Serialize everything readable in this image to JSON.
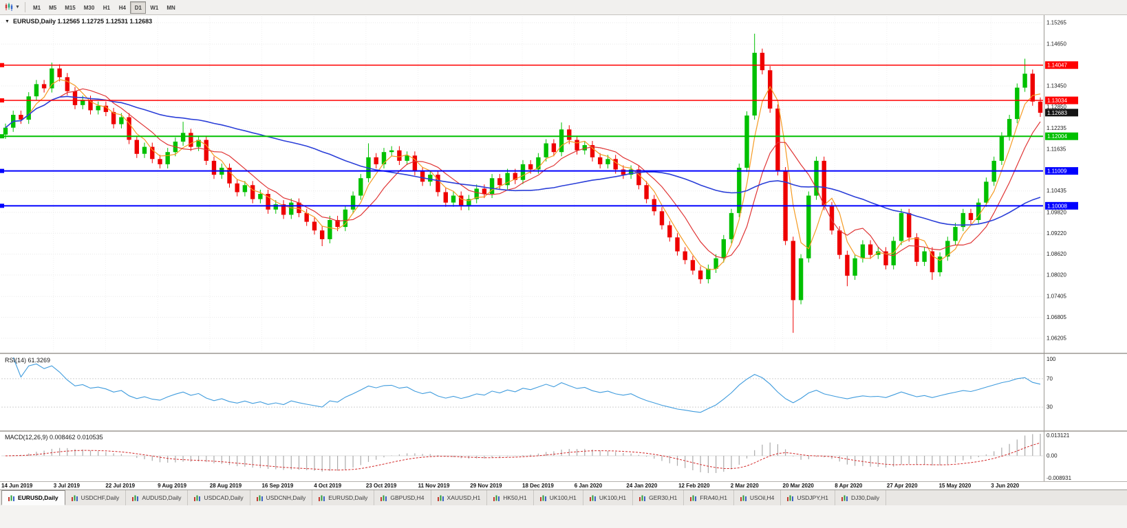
{
  "toolbar": {
    "timeframes": [
      {
        "label": "M1",
        "active": false
      },
      {
        "label": "M5",
        "active": false
      },
      {
        "label": "M15",
        "active": false
      },
      {
        "label": "M30",
        "active": false
      },
      {
        "label": "H1",
        "active": false
      },
      {
        "label": "H4",
        "active": false
      },
      {
        "label": "D1",
        "active": true
      },
      {
        "label": "W1",
        "active": false
      },
      {
        "label": "MN",
        "active": false
      }
    ]
  },
  "header": {
    "title_line": "EURUSD,Daily 1.12565 1.12725 1.12531 1.12683"
  },
  "panels": {
    "rsi_label": "RSI(14) 61.3269",
    "macd_label": "MACD(12,26,9) 0.008462 0.010535"
  },
  "tabs": [
    {
      "label": "EURUSD,Daily",
      "active": true
    },
    {
      "label": "USDCHF,Daily",
      "active": false
    },
    {
      "label": "AUDUSD,Daily",
      "active": false
    },
    {
      "label": "USDCAD,Daily",
      "active": false
    },
    {
      "label": "USDCNH,Daily",
      "active": false
    },
    {
      "label": "EURUSD,Daily",
      "active": false
    },
    {
      "label": "GBPUSD,H4",
      "active": false
    },
    {
      "label": "XAUUSD,H1",
      "active": false
    },
    {
      "label": "HK50,H1",
      "active": false
    },
    {
      "label": "UK100,H1",
      "active": false
    },
    {
      "label": "UK100,H1",
      "active": false
    },
    {
      "label": "GER30,H1",
      "active": false
    },
    {
      "label": "FRA40,H1",
      "active": false
    },
    {
      "label": "USOil,H4",
      "active": false
    },
    {
      "label": "USDJPY,H1",
      "active": false
    },
    {
      "label": "DJ30,Daily",
      "active": false
    }
  ],
  "chart_data": {
    "type": "candlestick",
    "title": "EURUSD,Daily",
    "last_bar": {
      "open": "1.12565",
      "high": "1.12725",
      "low": "1.12531",
      "close": "1.12683"
    },
    "grid": true,
    "price_axis": {
      "min": 1.06205,
      "max": 1.15265,
      "ticks": [
        "1.15265",
        "1.14650",
        "1.13450",
        "1.12850",
        "1.12235",
        "1.11635",
        "1.10435",
        "1.09820",
        "1.09220",
        "1.08620",
        "1.08020",
        "1.07405",
        "1.06805",
        "1.06205"
      ]
    },
    "x_labels": [
      "14 Jun 2019",
      "3 Jul 2019",
      "22 Jul 2019",
      "9 Aug 2019",
      "28 Aug 2019",
      "16 Sep 2019",
      "4 Oct 2019",
      "23 Oct 2019",
      "11 Nov 2019",
      "29 Nov 2019",
      "18 Dec 2019",
      "6 Jan 2020",
      "24 Jan 2020",
      "12 Feb 2020",
      "2 Mar 2020",
      "20 Mar 2020",
      "8 Apr 2020",
      "27 Apr 2020",
      "15 May 2020",
      "3 Jun 2020"
    ],
    "up_color": "#00C000",
    "down_color": "#EE0000",
    "first_open": 1.1205,
    "wick_pad": 0.0012,
    "closes": [
      1.1225,
      1.1262,
      1.1248,
      1.1315,
      1.135,
      1.1338,
      1.1395,
      1.137,
      1.133,
      1.129,
      1.1305,
      1.1275,
      1.1288,
      1.127,
      1.1235,
      1.1255,
      1.119,
      1.115,
      1.117,
      1.1135,
      1.112,
      1.1155,
      1.1185,
      1.121,
      1.117,
      1.119,
      1.113,
      1.109,
      1.111,
      1.1065,
      1.104,
      1.106,
      1.102,
      1.1035,
      1.099,
      1.1005,
      1.0975,
      1.101,
      1.098,
      1.0955,
      1.093,
      1.0905,
      1.096,
      1.094,
      1.099,
      1.103,
      1.108,
      1.114,
      1.112,
      1.1155,
      1.116,
      1.113,
      1.1145,
      1.11,
      1.107,
      1.109,
      1.104,
      1.101,
      1.103,
      1.1,
      1.102,
      1.105,
      1.1035,
      1.108,
      1.106,
      1.1095,
      1.1075,
      1.112,
      1.1105,
      1.114,
      1.118,
      1.1155,
      1.122,
      1.119,
      1.116,
      1.1175,
      1.114,
      1.112,
      1.1135,
      1.1105,
      1.109,
      1.1105,
      1.106,
      1.102,
      1.0985,
      1.0945,
      1.091,
      1.087,
      1.0845,
      1.0815,
      1.079,
      1.082,
      1.085,
      1.0905,
      1.098,
      1.111,
      1.126,
      1.144,
      1.139,
      1.128,
      1.11,
      1.09,
      1.073,
      1.085,
      1.103,
      1.113,
      1.1,
      1.093,
      1.086,
      1.08,
      1.085,
      1.089,
      1.086,
      1.087,
      1.083,
      1.09,
      1.098,
      1.091,
      1.084,
      1.087,
      1.081,
      1.0855,
      1.09,
      1.094,
      1.098,
      1.096,
      1.101,
      1.107,
      1.113,
      1.12,
      1.125,
      1.134,
      1.138,
      1.13,
      1.1268
    ],
    "wick_highs": {
      "6": 1.1412,
      "23": 1.1242,
      "47": 1.118,
      "72": 1.124,
      "97": 1.1495,
      "132": 1.1423
    },
    "wick_lows": {
      "41": 1.0885,
      "90": 1.0777,
      "102": 1.0636,
      "109": 1.077,
      "120": 1.0788
    },
    "moving_averages": [
      {
        "period": 4,
        "color": "#F59B22",
        "width": 1.2
      },
      {
        "period": 8,
        "color": "#E03535",
        "width": 1.2
      },
      {
        "period": 40,
        "color": "#2A3ED8",
        "width": 1.6
      }
    ],
    "hlines": [
      {
        "price": 1.14047,
        "color": "#FF0000",
        "width": 1.5,
        "tag": "1.14047"
      },
      {
        "price": 1.13034,
        "color": "#FF0000",
        "width": 1.5,
        "tag": "1.13034"
      },
      {
        "price": 1.12004,
        "color": "#00C000",
        "width": 2,
        "tag": "1.12004"
      },
      {
        "price": 1.11009,
        "color": "#0000FF",
        "width": 2,
        "tag": "1.11009"
      },
      {
        "price": 1.10008,
        "color": "#0000FF",
        "width": 2,
        "tag": "1.10008"
      }
    ],
    "current_price_tag": {
      "price": 1.12683,
      "label": "1.12683",
      "bg": "#141414"
    },
    "rsi": {
      "period": 14,
      "value_label": "61.3269",
      "color": "#3E9BDD",
      "range": [
        0,
        100
      ],
      "levels": [
        70,
        30
      ],
      "axis_labels": [
        "100",
        "70",
        "30"
      ]
    },
    "macd": {
      "fast": 12,
      "slow": 26,
      "signal_period": 9,
      "values_label": "0.008462 0.010535",
      "hist_color": "#ABABAB",
      "signal_color": "#D22727",
      "axis_labels": {
        "top": "0.013121",
        "zero": "0.00",
        "bottom": "-0.008931"
      }
    }
  }
}
